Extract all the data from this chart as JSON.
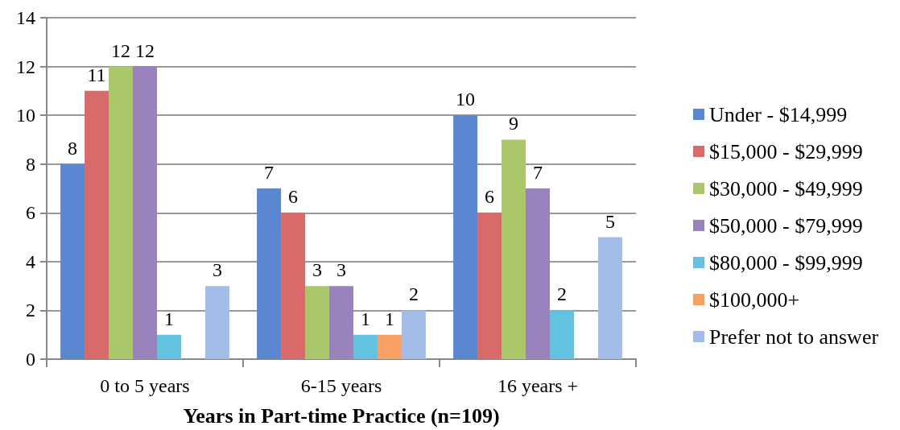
{
  "chart_data": {
    "type": "bar",
    "xlabel": "Years in Part-time Practice (n=109)",
    "categories": [
      "0 to 5 years",
      "6-15 years",
      "16 years +"
    ],
    "series": [
      {
        "name": "Under - $14,999",
        "color": "#5b87d0",
        "values": [
          8,
          7,
          10
        ]
      },
      {
        "name": "$15,000 - $29,999",
        "color": "#d86a6a",
        "values": [
          11,
          6,
          6
        ]
      },
      {
        "name": "$30,000 - $49,999",
        "color": "#aac86a",
        "values": [
          12,
          3,
          9
        ]
      },
      {
        "name": "$50,000 - $79,999",
        "color": "#9a82bc",
        "values": [
          12,
          3,
          7
        ]
      },
      {
        "name": "$80,000 - $99,999",
        "color": "#62c2e0",
        "values": [
          1,
          1,
          2
        ]
      },
      {
        "name": "$100,000+",
        "color": "#f7a164",
        "values": [
          null,
          1,
          null
        ]
      },
      {
        "name": "Prefer not to answer",
        "color": "#a4bde8",
        "values": [
          3,
          2,
          5
        ]
      }
    ],
    "ylim": [
      0,
      14
    ],
    "yticks": [
      0,
      2,
      4,
      6,
      8,
      10,
      12,
      14
    ],
    "grid": "y",
    "legend": "right",
    "data_labels": true
  }
}
